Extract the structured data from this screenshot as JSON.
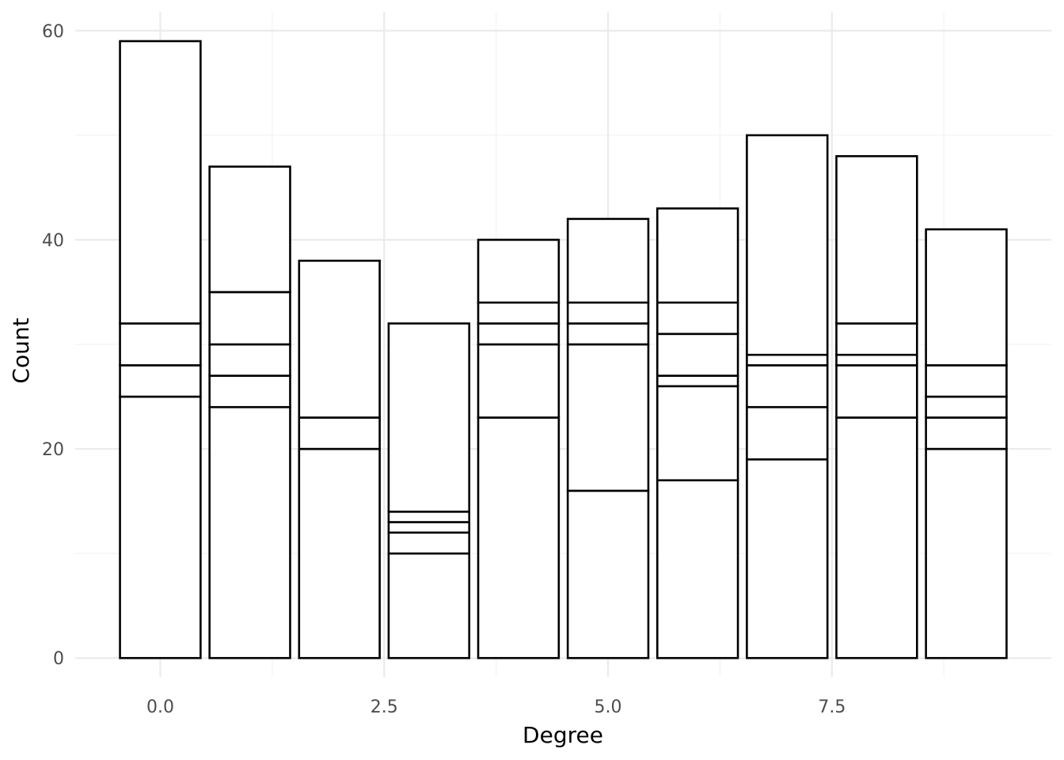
{
  "chart_data": {
    "type": "bar",
    "stacked": true,
    "xlabel": "Degree",
    "ylabel": "Count",
    "xlim": [
      -0.5,
      9.5
    ],
    "ylim": [
      0,
      60
    ],
    "x_ticks": [
      "0.0",
      "2.5",
      "5.0",
      "7.5"
    ],
    "y_ticks": [
      "0",
      "20",
      "40",
      "60"
    ],
    "grid": true,
    "fill_color": "#ffffff",
    "outline_color": "#000000",
    "bars": [
      {
        "x": 0,
        "segment_tops": [
          25,
          28,
          32,
          59
        ]
      },
      {
        "x": 1,
        "segment_tops": [
          24,
          27,
          30,
          35,
          47
        ]
      },
      {
        "x": 2,
        "segment_tops": [
          20,
          23,
          38
        ]
      },
      {
        "x": 3,
        "segment_tops": [
          10,
          12,
          13,
          14,
          32
        ]
      },
      {
        "x": 4,
        "segment_tops": [
          23,
          30,
          32,
          34,
          40
        ]
      },
      {
        "x": 5,
        "segment_tops": [
          16,
          30,
          32,
          34,
          42
        ]
      },
      {
        "x": 6,
        "segment_tops": [
          17,
          26,
          27,
          31,
          34,
          43
        ]
      },
      {
        "x": 7,
        "segment_tops": [
          19,
          24,
          28,
          29,
          50
        ]
      },
      {
        "x": 8,
        "segment_tops": [
          23,
          28,
          29,
          32,
          48
        ]
      },
      {
        "x": 9,
        "segment_tops": [
          20,
          23,
          25,
          28,
          41
        ]
      }
    ]
  }
}
